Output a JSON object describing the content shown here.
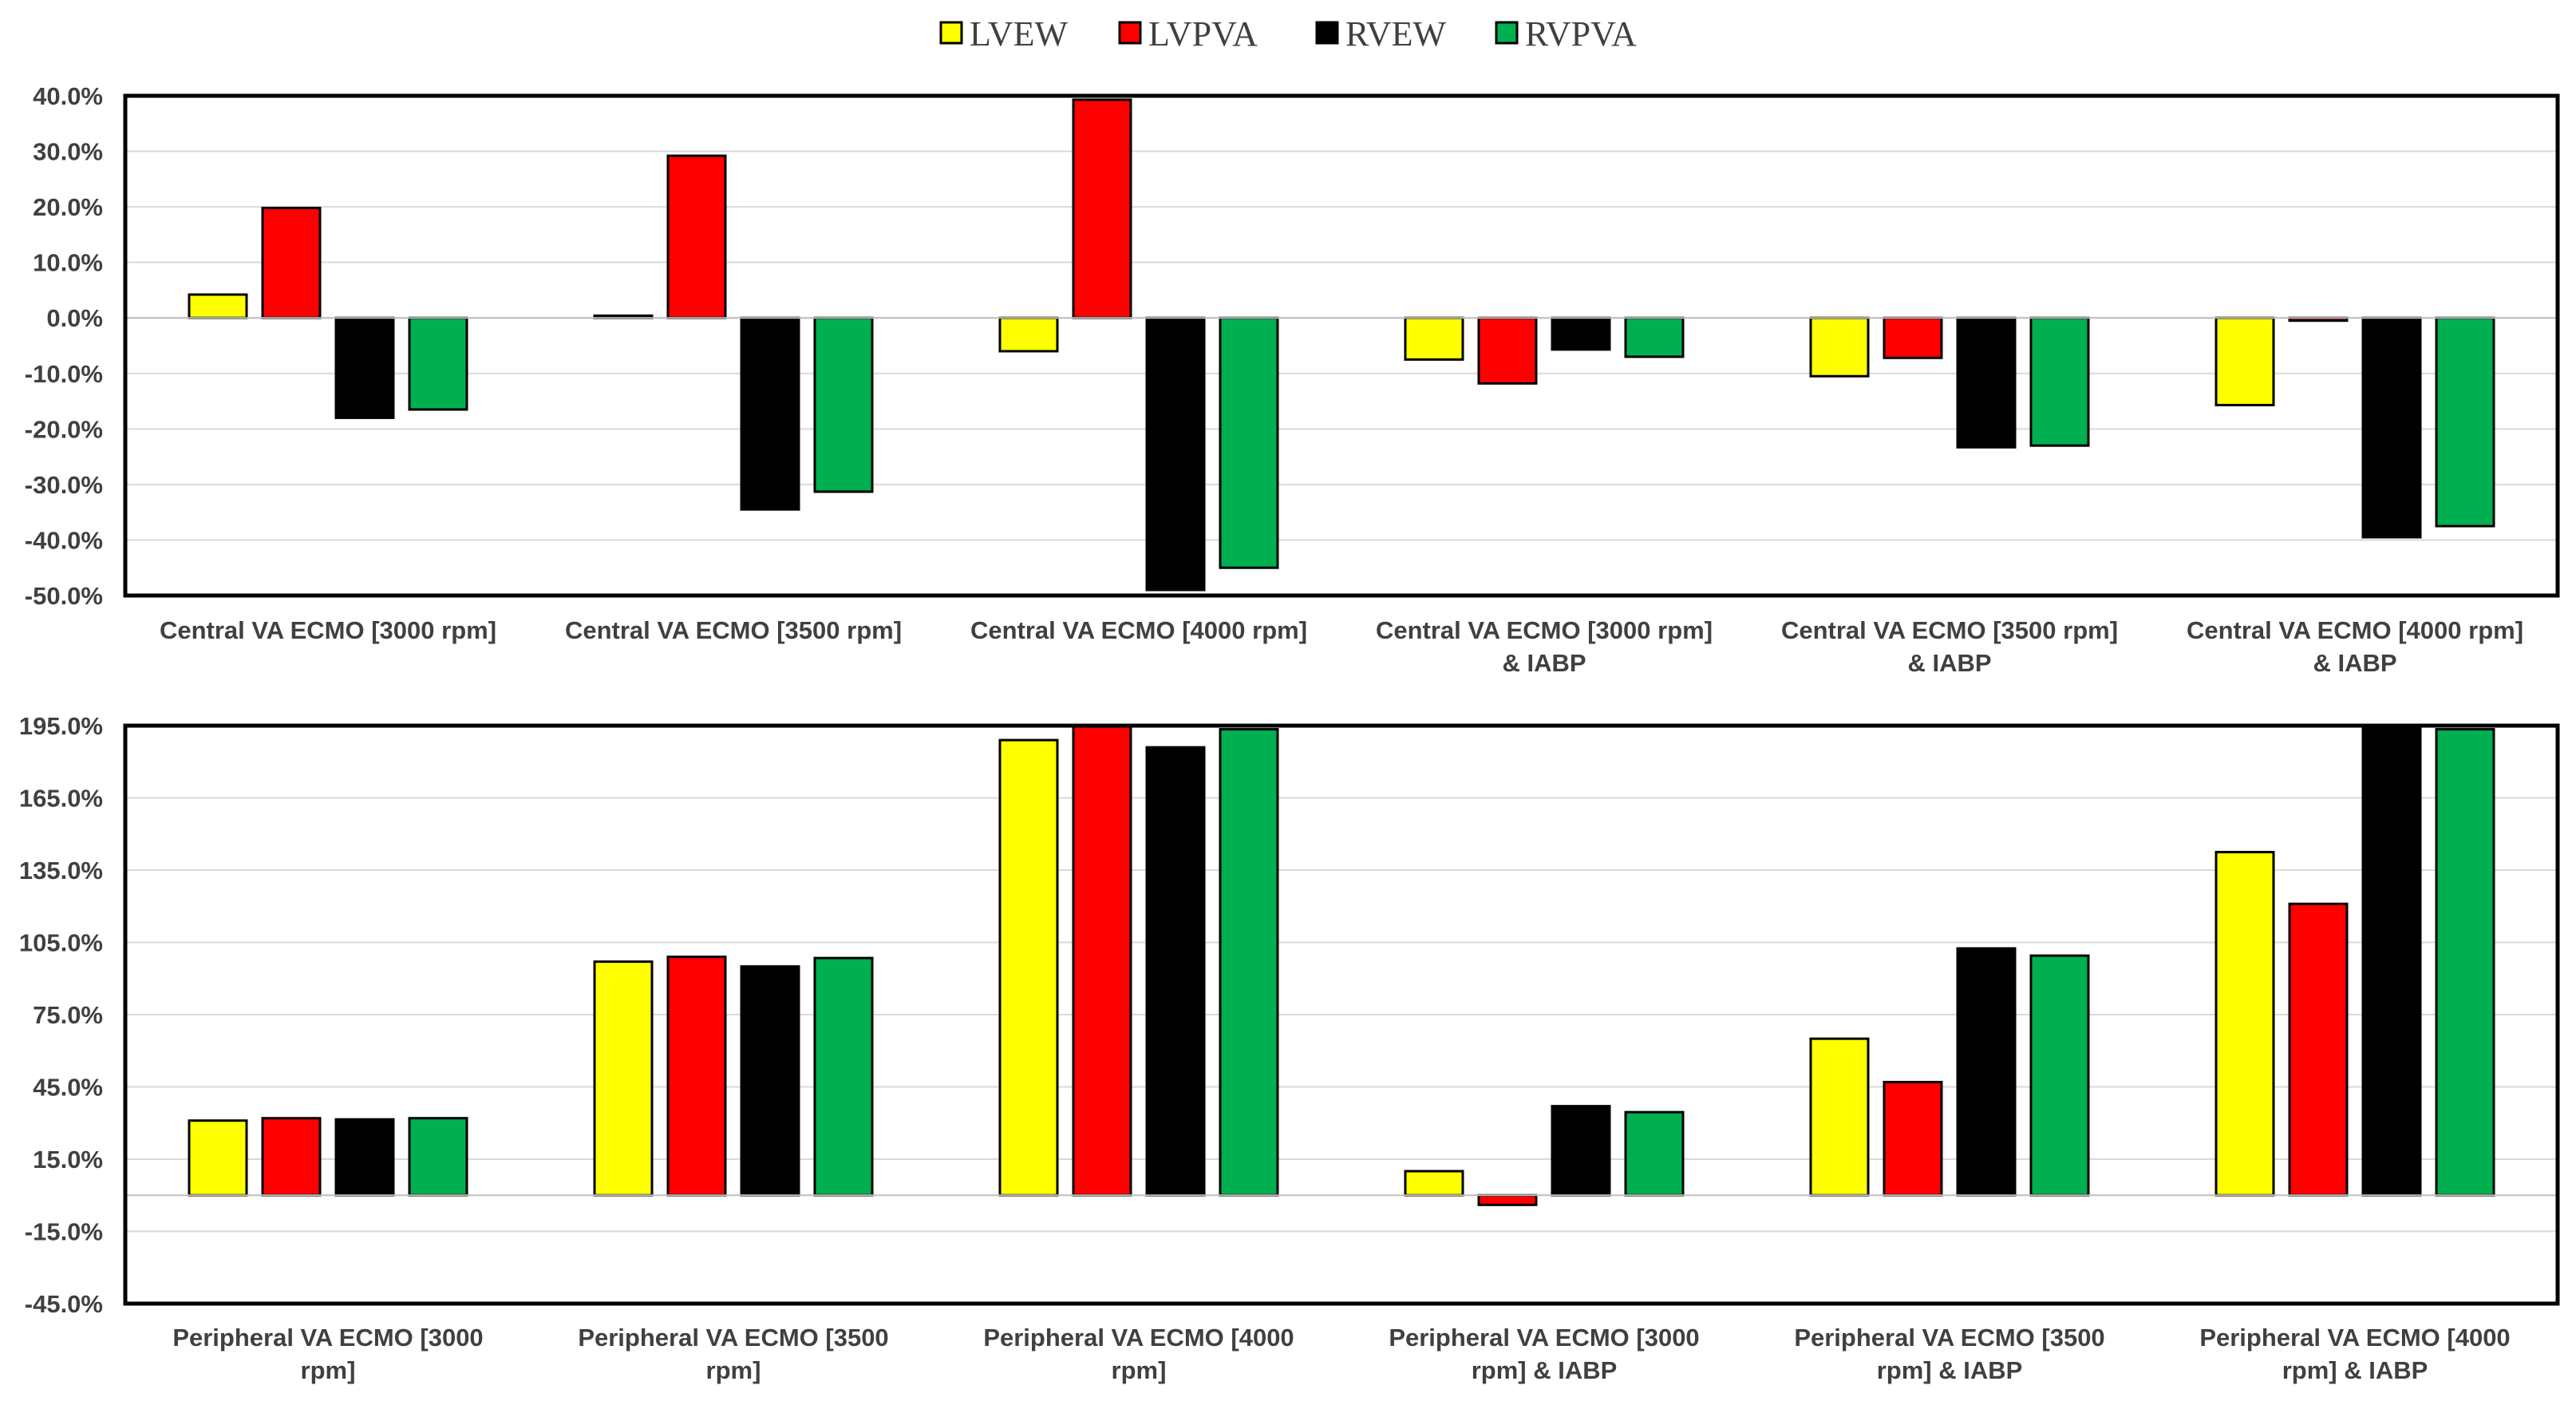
{
  "legend": [
    {
      "name": "LVEW",
      "color": "#FFFF00"
    },
    {
      "name": "LVPVA",
      "color": "#FF0000"
    },
    {
      "name": "RVEW",
      "color": "#000000"
    },
    {
      "name": "RVPVA",
      "color": "#00B050"
    }
  ],
  "chart_data": [
    {
      "type": "bar",
      "title": "",
      "xlabel": "",
      "ylabel": "",
      "ylim": [
        -50,
        40
      ],
      "yticks": [
        40,
        30,
        20,
        10,
        0,
        -10,
        -20,
        -30,
        -40,
        -50
      ],
      "ytick_labels": [
        "40.0%",
        "30.0%",
        "20.0%",
        "10.0%",
        "0.0%",
        "-10.0%",
        "-20.0%",
        "-30.0%",
        "-40.0%",
        "-50.0%"
      ],
      "categories": [
        [
          "Central VA ECMO [3000 rpm]"
        ],
        [
          "Central VA ECMO [3500 rpm]"
        ],
        [
          "Central VA ECMO [4000 rpm]"
        ],
        [
          "Central VA ECMO [3000 rpm]",
          "& IABP"
        ],
        [
          "Central VA ECMO [3500 rpm]",
          "& IABP"
        ],
        [
          "Central VA ECMO [4000 rpm]",
          "& IABP"
        ]
      ],
      "series": [
        {
          "name": "LVEW",
          "values": [
            4.2,
            0.4,
            -6.0,
            -7.5,
            -10.5,
            -15.7
          ]
        },
        {
          "name": "LVPVA",
          "values": [
            19.8,
            29.2,
            39.3,
            -11.8,
            -7.2,
            -0.5
          ]
        },
        {
          "name": "RVEW",
          "values": [
            -18.0,
            -34.5,
            -49.0,
            -5.7,
            -23.3,
            -39.5
          ]
        },
        {
          "name": "RVPVA",
          "values": [
            -16.5,
            -31.3,
            -45.0,
            -7.0,
            -23.0,
            -37.5
          ]
        }
      ]
    },
    {
      "type": "bar",
      "title": "",
      "xlabel": "",
      "ylabel": "",
      "ylim": [
        -45,
        195
      ],
      "yticks": [
        195,
        165,
        135,
        105,
        75,
        45,
        15,
        -15,
        -45
      ],
      "ytick_labels": [
        "195.0%",
        "165.0%",
        "135.0%",
        "105.0%",
        "75.0%",
        "45.0%",
        "15.0%",
        "-15.0%",
        "-45.0%"
      ],
      "categories": [
        [
          "Peripheral VA ECMO [3000",
          "rpm]"
        ],
        [
          "Peripheral VA ECMO [3500",
          "rpm]"
        ],
        [
          "Peripheral VA ECMO [4000",
          "rpm]"
        ],
        [
          "Peripheral VA  ECMO [3000",
          "rpm] & IABP"
        ],
        [
          "Peripheral VA ECMO [3500",
          "rpm] & IABP"
        ],
        [
          "Peripheral VA ECMO [4000",
          "rpm] & IABP"
        ]
      ],
      "series": [
        {
          "name": "LVEW",
          "values": [
            31.0,
            97.0,
            189.0,
            10.0,
            65.0,
            142.5
          ]
        },
        {
          "name": "LVPVA",
          "values": [
            32.0,
            99.0,
            195.0,
            -4.0,
            47.0,
            121.0
          ]
        },
        {
          "name": "RVEW",
          "values": [
            31.5,
            95.0,
            186.0,
            37.0,
            102.5,
            195.0
          ]
        },
        {
          "name": "RVPVA",
          "values": [
            32.0,
            98.5,
            193.5,
            34.5,
            99.5,
            193.5
          ]
        }
      ]
    }
  ]
}
